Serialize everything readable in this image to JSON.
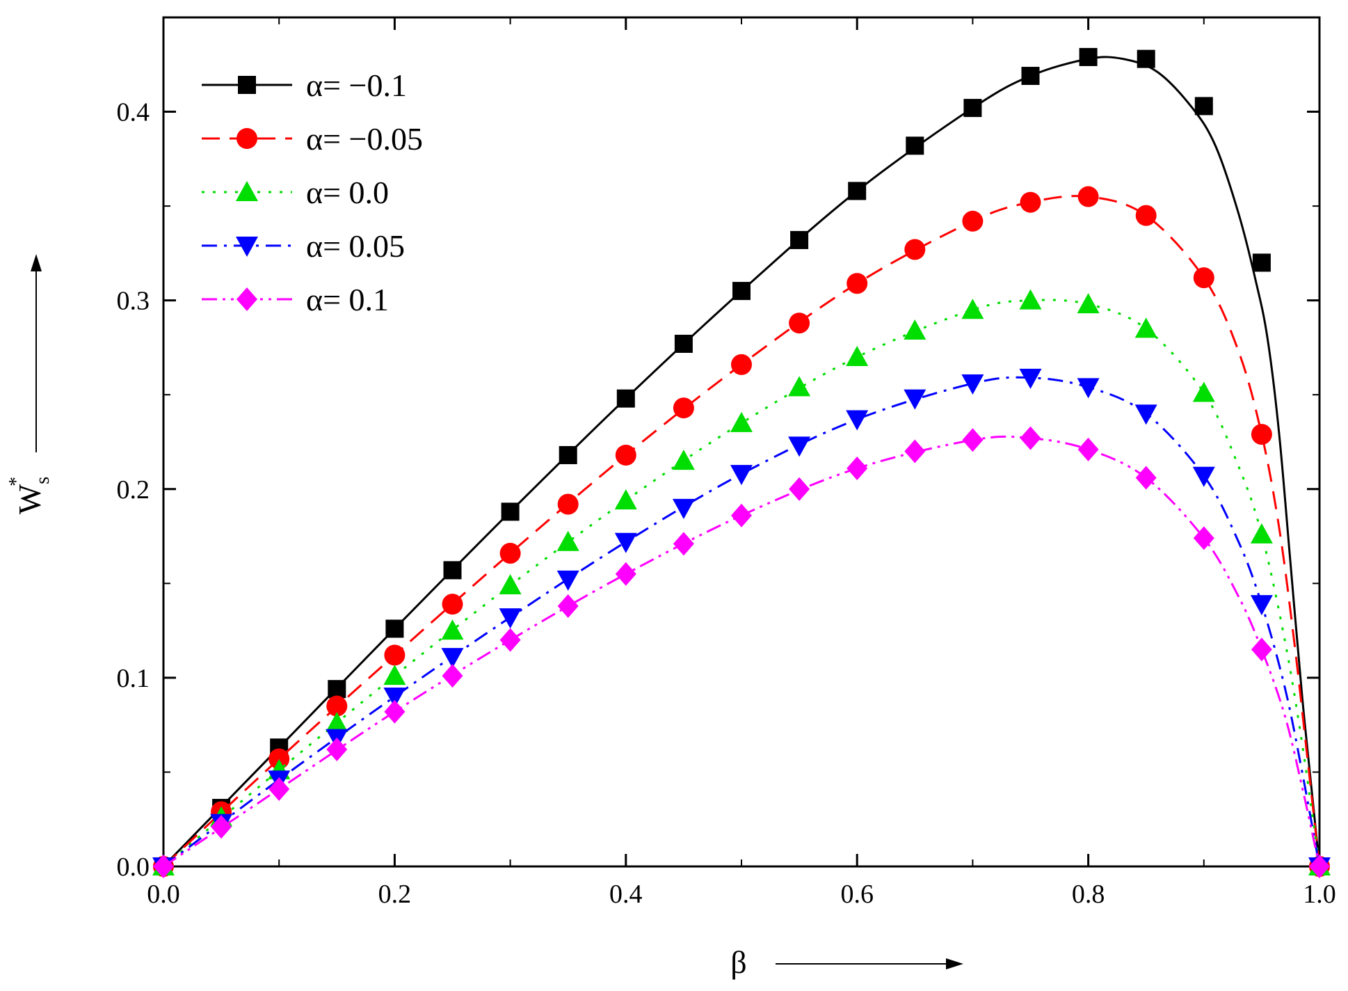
{
  "chart_data": {
    "type": "line",
    "title": "",
    "xlabel": "β",
    "ylabel_main": "W",
    "ylabel_sub": "s",
    "ylabel_sup": "*",
    "xlim": [
      0.0,
      1.0
    ],
    "ylim": [
      0.0,
      0.45
    ],
    "x_ticks": [
      "0.0",
      "0.2",
      "0.4",
      "0.6",
      "0.8",
      "1.0"
    ],
    "y_ticks": [
      "0.0",
      "0.1",
      "0.2",
      "0.3",
      "0.4"
    ],
    "x_tick_values": [
      0.0,
      0.2,
      0.4,
      0.6,
      0.8,
      1.0
    ],
    "y_tick_values": [
      0.0,
      0.1,
      0.2,
      0.3,
      0.4
    ],
    "x_minor_values": [
      0.1,
      0.3,
      0.5,
      0.7,
      0.9
    ],
    "y_minor_values": [
      0.05,
      0.15,
      0.25,
      0.35
    ],
    "grid": false,
    "legend_position": "top-left",
    "x": [
      0.0,
      0.05,
      0.1,
      0.15,
      0.2,
      0.25,
      0.3,
      0.35,
      0.4,
      0.45,
      0.5,
      0.55,
      0.6,
      0.65,
      0.7,
      0.75,
      0.8,
      0.85,
      0.9,
      0.95,
      1.0
    ],
    "series": [
      {
        "name": "α= −0.1",
        "color": "#000000",
        "marker": "square",
        "dash": "",
        "values": [
          0.0,
          0.031,
          0.063,
          0.094,
          0.126,
          0.157,
          0.188,
          0.218,
          0.248,
          0.277,
          0.305,
          0.332,
          0.358,
          0.382,
          0.402,
          0.419,
          0.429,
          0.428,
          0.403,
          0.32,
          0.0
        ],
        "curve": [
          [
            0.0,
            0.0
          ],
          [
            0.1,
            0.063
          ],
          [
            0.2,
            0.126
          ],
          [
            0.3,
            0.188
          ],
          [
            0.4,
            0.248
          ],
          [
            0.5,
            0.305
          ],
          [
            0.6,
            0.358
          ],
          [
            0.7,
            0.402
          ],
          [
            0.75,
            0.419
          ],
          [
            0.8,
            0.428
          ],
          [
            0.83,
            0.428
          ],
          [
            0.86,
            0.421
          ],
          [
            0.89,
            0.402
          ],
          [
            0.91,
            0.382
          ],
          [
            0.93,
            0.346
          ],
          [
            0.945,
            0.31
          ],
          [
            0.955,
            0.28
          ],
          [
            0.965,
            0.23
          ],
          [
            0.975,
            0.16
          ],
          [
            0.985,
            0.09
          ],
          [
            0.995,
            0.03
          ],
          [
            1.0,
            0.0
          ]
        ]
      },
      {
        "name": "α= −0.05",
        "color": "#ff0000",
        "marker": "circle",
        "dash": "26,14",
        "values": [
          0.0,
          0.029,
          0.057,
          0.085,
          0.112,
          0.139,
          0.166,
          0.192,
          0.218,
          0.243,
          0.266,
          0.288,
          0.309,
          0.327,
          0.342,
          0.352,
          0.355,
          0.345,
          0.312,
          0.229,
          0.0
        ],
        "curve": [
          [
            0.0,
            0.0
          ],
          [
            0.1,
            0.057
          ],
          [
            0.2,
            0.112
          ],
          [
            0.3,
            0.166
          ],
          [
            0.4,
            0.218
          ],
          [
            0.5,
            0.266
          ],
          [
            0.6,
            0.309
          ],
          [
            0.7,
            0.342
          ],
          [
            0.75,
            0.352
          ],
          [
            0.8,
            0.355
          ],
          [
            0.85,
            0.345
          ],
          [
            0.9,
            0.312
          ],
          [
            0.93,
            0.273
          ],
          [
            0.95,
            0.229
          ],
          [
            0.965,
            0.18
          ],
          [
            0.978,
            0.12
          ],
          [
            0.99,
            0.055
          ],
          [
            1.0,
            0.0
          ]
        ]
      },
      {
        "name": "α= 0.0",
        "color": "#00dd00",
        "marker": "triangle-up",
        "dash": "4,12",
        "values": [
          0.0,
          0.026,
          0.051,
          0.076,
          0.101,
          0.125,
          0.149,
          0.172,
          0.194,
          0.215,
          0.235,
          0.254,
          0.27,
          0.284,
          0.295,
          0.3,
          0.298,
          0.285,
          0.251,
          0.176,
          0.0
        ],
        "curve": [
          [
            0.0,
            0.0
          ],
          [
            0.1,
            0.051
          ],
          [
            0.2,
            0.101
          ],
          [
            0.3,
            0.149
          ],
          [
            0.4,
            0.194
          ],
          [
            0.5,
            0.235
          ],
          [
            0.6,
            0.27
          ],
          [
            0.7,
            0.295
          ],
          [
            0.75,
            0.3
          ],
          [
            0.8,
            0.298
          ],
          [
            0.85,
            0.285
          ],
          [
            0.9,
            0.251
          ],
          [
            0.93,
            0.212
          ],
          [
            0.95,
            0.176
          ],
          [
            0.97,
            0.12
          ],
          [
            0.985,
            0.065
          ],
          [
            1.0,
            0.0
          ]
        ]
      },
      {
        "name": "α= 0.05",
        "color": "#0000ff",
        "marker": "triangle-down",
        "dash": "22,10,4,10",
        "values": [
          0.0,
          0.023,
          0.046,
          0.068,
          0.09,
          0.111,
          0.132,
          0.152,
          0.172,
          0.19,
          0.208,
          0.223,
          0.237,
          0.248,
          0.256,
          0.259,
          0.254,
          0.24,
          0.207,
          0.139,
          0.0
        ],
        "curve": [
          [
            0.0,
            0.0
          ],
          [
            0.1,
            0.046
          ],
          [
            0.2,
            0.09
          ],
          [
            0.3,
            0.132
          ],
          [
            0.4,
            0.172
          ],
          [
            0.5,
            0.208
          ],
          [
            0.6,
            0.237
          ],
          [
            0.7,
            0.256
          ],
          [
            0.75,
            0.259
          ],
          [
            0.8,
            0.254
          ],
          [
            0.85,
            0.24
          ],
          [
            0.9,
            0.207
          ],
          [
            0.93,
            0.172
          ],
          [
            0.95,
            0.139
          ],
          [
            0.97,
            0.095
          ],
          [
            0.985,
            0.05
          ],
          [
            1.0,
            0.0
          ]
        ]
      },
      {
        "name": "α= 0.1",
        "color": "#ff00ff",
        "marker": "diamond",
        "dash": "22,8,4,8,4,8",
        "values": [
          0.0,
          0.021,
          0.041,
          0.062,
          0.082,
          0.101,
          0.12,
          0.138,
          0.155,
          0.171,
          0.186,
          0.2,
          0.211,
          0.22,
          0.226,
          0.227,
          0.221,
          0.206,
          0.174,
          0.115,
          0.0
        ],
        "curve": [
          [
            0.0,
            0.0
          ],
          [
            0.1,
            0.041
          ],
          [
            0.2,
            0.082
          ],
          [
            0.3,
            0.12
          ],
          [
            0.4,
            0.155
          ],
          [
            0.5,
            0.186
          ],
          [
            0.6,
            0.211
          ],
          [
            0.7,
            0.226
          ],
          [
            0.75,
            0.227
          ],
          [
            0.8,
            0.221
          ],
          [
            0.85,
            0.206
          ],
          [
            0.9,
            0.174
          ],
          [
            0.93,
            0.143
          ],
          [
            0.95,
            0.115
          ],
          [
            0.97,
            0.08
          ],
          [
            0.985,
            0.042
          ],
          [
            1.0,
            0.0
          ]
        ]
      }
    ]
  }
}
